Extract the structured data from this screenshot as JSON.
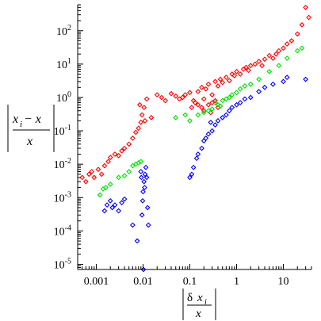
{
  "chart_data": {
    "type": "scatter",
    "x_scale": "log",
    "y_scale": "log",
    "xlim": [
      0.0004,
      40
    ],
    "ylim": [
      7e-06,
      600
    ],
    "grid": false,
    "legend": "none",
    "x_tick_labels": [
      {
        "value": 0.001,
        "label": "0.001"
      },
      {
        "value": 0.01,
        "label": "0.01"
      },
      {
        "value": 0.1,
        "label": "0.1"
      },
      {
        "value": 1,
        "label": "1"
      },
      {
        "value": 10,
        "label": "10"
      }
    ],
    "y_tick_labels": [
      {
        "value": 100,
        "base": "10",
        "exp": "2"
      },
      {
        "value": 10,
        "base": "10",
        "exp": "1"
      },
      {
        "value": 1,
        "base": "10",
        "exp": "0"
      },
      {
        "value": 0.1,
        "base": "10",
        "exp": "-1"
      },
      {
        "value": 0.01,
        "base": "10",
        "exp": "-2"
      },
      {
        "value": 0.001,
        "base": "10",
        "exp": "-3"
      },
      {
        "value": 0.0001,
        "base": "10",
        "exp": "-4"
      },
      {
        "value": 1e-05,
        "base": "10",
        "exp": "-5"
      }
    ],
    "ylabel": {
      "num_a": "x",
      "num_sub": "i",
      "num_mid": " − x",
      "den": "x"
    },
    "xlabel": {
      "num_delta": "δ",
      "num_x": "x",
      "num_sub": "i",
      "den": "x"
    },
    "series_colors": {
      "red": "#ff0000",
      "green": "#00e000",
      "blue": "#0000ff"
    },
    "series": [
      {
        "color": "red",
        "points": [
          [
            0.0005,
            0.004
          ],
          [
            0.0006,
            0.003
          ],
          [
            0.0007,
            0.005
          ],
          [
            0.0008,
            0.006
          ],
          [
            0.0009,
            0.004
          ],
          [
            0.0011,
            0.007
          ],
          [
            0.0013,
            0.005
          ],
          [
            0.0015,
            0.009
          ],
          [
            0.0018,
            0.012
          ],
          [
            0.002,
            0.016
          ],
          [
            0.0025,
            0.02
          ],
          [
            0.003,
            0.018
          ],
          [
            0.0035,
            0.025
          ],
          [
            0.004,
            0.03
          ],
          [
            0.005,
            0.04
          ],
          [
            0.006,
            0.06
          ],
          [
            0.007,
            0.09
          ],
          [
            0.008,
            0.12
          ],
          [
            0.009,
            0.18
          ],
          [
            0.0095,
            0.3
          ],
          [
            0.0105,
            0.5
          ],
          [
            0.011,
            0.2
          ],
          [
            0.0085,
            0.6
          ],
          [
            0.012,
            0.9
          ],
          [
            0.015,
            0.25
          ],
          [
            0.02,
            1.2
          ],
          [
            0.025,
            1.0
          ],
          [
            0.03,
            0.8
          ],
          [
            0.04,
            1.3
          ],
          [
            0.05,
            1.1
          ],
          [
            0.06,
            0.9
          ],
          [
            0.07,
            1.0
          ],
          [
            0.08,
            1.2
          ],
          [
            0.1,
            1.4
          ],
          [
            0.12,
            0.8
          ],
          [
            0.15,
            1.5
          ],
          [
            0.18,
            2.0
          ],
          [
            0.2,
            0.9
          ],
          [
            0.22,
            1.8
          ],
          [
            0.25,
            2.5
          ],
          [
            0.3,
            1.2
          ],
          [
            0.35,
            3.0
          ],
          [
            0.4,
            2.2
          ],
          [
            0.45,
            3.5
          ],
          [
            0.5,
            2.8
          ],
          [
            0.6,
            4.0
          ],
          [
            0.7,
            3.2
          ],
          [
            0.8,
            5.0
          ],
          [
            0.9,
            4.5
          ],
          [
            1.0,
            6.0
          ],
          [
            1.2,
            5.0
          ],
          [
            1.4,
            7.0
          ],
          [
            1.6,
            8.0
          ],
          [
            1.8,
            6.5
          ],
          [
            2.0,
            9.0
          ],
          [
            2.5,
            10
          ],
          [
            3,
            12
          ],
          [
            3.5,
            9
          ],
          [
            4,
            14
          ],
          [
            5,
            18
          ],
          [
            6,
            15
          ],
          [
            7,
            20
          ],
          [
            8,
            25
          ],
          [
            10,
            30
          ],
          [
            12,
            40
          ],
          [
            15,
            50
          ],
          [
            20,
            80
          ],
          [
            25,
            150
          ],
          [
            30,
            500
          ],
          [
            35,
            250
          ],
          [
            0.15,
            0.6
          ],
          [
            0.18,
            0.5
          ],
          [
            0.13,
            0.7
          ],
          [
            0.2,
            0.4
          ],
          [
            0.11,
            0.5
          ],
          [
            0.25,
            0.6
          ],
          [
            0.3,
            0.7
          ],
          [
            0.35,
            0.8
          ],
          [
            0.4,
            0.5
          ],
          [
            0.28,
            0.35
          ]
        ]
      },
      {
        "color": "green",
        "points": [
          [
            0.0012,
            0.0012
          ],
          [
            0.0014,
            0.0018
          ],
          [
            0.0016,
            0.002
          ],
          [
            0.002,
            0.0025
          ],
          [
            0.003,
            0.004
          ],
          [
            0.004,
            0.0045
          ],
          [
            0.005,
            0.006
          ],
          [
            0.006,
            0.009
          ],
          [
            0.007,
            0.01
          ],
          [
            0.008,
            0.011
          ],
          [
            0.009,
            0.012
          ],
          [
            0.05,
            0.25
          ],
          [
            0.08,
            0.3
          ],
          [
            0.1,
            0.2
          ],
          [
            0.15,
            0.3
          ],
          [
            0.2,
            0.35
          ],
          [
            0.25,
            0.4
          ],
          [
            0.3,
            0.45
          ],
          [
            0.4,
            0.6
          ],
          [
            0.5,
            0.8
          ],
          [
            0.6,
            0.9
          ],
          [
            0.8,
            1.2
          ],
          [
            1.0,
            1.4
          ],
          [
            1.2,
            1.8
          ],
          [
            1.5,
            2.2
          ],
          [
            2.0,
            2.5
          ],
          [
            3.0,
            3.5
          ],
          [
            5.0,
            6.0
          ],
          [
            8.0,
            9.0
          ],
          [
            12,
            15
          ],
          [
            20,
            25
          ],
          [
            25,
            30
          ],
          [
            0.35,
            0.7
          ],
          [
            0.45,
            0.55
          ],
          [
            0.7,
            1.0
          ]
        ]
      },
      {
        "color": "blue",
        "points": [
          [
            0.0015,
            0.0004
          ],
          [
            0.0017,
            0.0006
          ],
          [
            0.002,
            0.0008
          ],
          [
            0.0022,
            0.0005
          ],
          [
            0.0025,
            0.0006
          ],
          [
            0.003,
            0.0004
          ],
          [
            0.0035,
            0.0007
          ],
          [
            0.004,
            0.0009
          ],
          [
            0.006,
            0.00015
          ],
          [
            0.0075,
            5e-05
          ],
          [
            0.0095,
            0.0003
          ],
          [
            0.0098,
            0.0008
          ],
          [
            0.01,
            0.0015
          ],
          [
            0.0105,
            0.003
          ],
          [
            0.011,
            0.005
          ],
          [
            0.0115,
            0.008
          ],
          [
            0.012,
            0.004
          ],
          [
            0.0125,
            0.0005
          ],
          [
            0.013,
            0.00015
          ],
          [
            0.0102,
            7e-06
          ],
          [
            0.009,
            0.006
          ],
          [
            0.0092,
            0.004
          ],
          [
            0.0108,
            0.002
          ],
          [
            0.1,
            0.004
          ],
          [
            0.11,
            0.005
          ],
          [
            0.12,
            0.008
          ],
          [
            0.14,
            0.015
          ],
          [
            0.15,
            0.02
          ],
          [
            0.18,
            0.03
          ],
          [
            0.2,
            0.05
          ],
          [
            0.22,
            0.06
          ],
          [
            0.25,
            0.08
          ],
          [
            0.3,
            0.1
          ],
          [
            0.35,
            0.15
          ],
          [
            0.4,
            0.2
          ],
          [
            0.5,
            0.25
          ],
          [
            0.6,
            0.3
          ],
          [
            0.7,
            0.4
          ],
          [
            0.8,
            0.5
          ],
          [
            1.0,
            0.6
          ],
          [
            1.2,
            0.7
          ],
          [
            1.5,
            0.9
          ],
          [
            2.0,
            1.0
          ],
          [
            3.0,
            1.5
          ],
          [
            4.0,
            2.0
          ],
          [
            6.0,
            2.5
          ],
          [
            10,
            3.0
          ],
          [
            12,
            4.0
          ],
          [
            30,
            3.5
          ],
          [
            0.28,
            0.18
          ]
        ]
      }
    ]
  }
}
